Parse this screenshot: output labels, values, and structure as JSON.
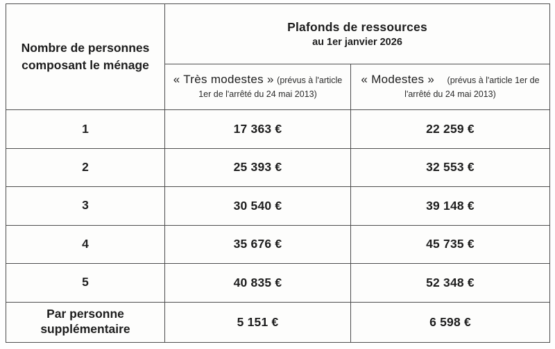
{
  "table": {
    "household_header": "Nombre de personnes composant le ménage",
    "main_header": {
      "title": "Plafonds de ressources",
      "subtitle": "au 1er janvier 2026"
    },
    "columns": [
      {
        "label": "« Très modestes »",
        "note": "(prévus à l'article 1er de l'arrêté du 24 mai 2013)"
      },
      {
        "label": "« Modestes »",
        "note": "(prévus à l'article 1er de l'arrêté du 24 mai 2013)"
      }
    ],
    "rows": [
      {
        "household": "1",
        "tres_modestes": "17 363 €",
        "modestes": "22 259 €"
      },
      {
        "household": "2",
        "tres_modestes": "25 393 €",
        "modestes": "32 553 €"
      },
      {
        "household": "3",
        "tres_modestes": "30 540 €",
        "modestes": "39 148 €"
      },
      {
        "household": "4",
        "tres_modestes": "35 676 €",
        "modestes": "45 735 €"
      },
      {
        "household": "5",
        "tres_modestes": "40 835 €",
        "modestes": "52 348 €"
      },
      {
        "household": "Par personne supplémentaire",
        "tres_modestes": "5 151 €",
        "modestes": "6 598 €"
      }
    ]
  },
  "colors": {
    "header_background": "#f3eedc",
    "border": "#4c4c4c",
    "text": "#1d1d1d"
  }
}
